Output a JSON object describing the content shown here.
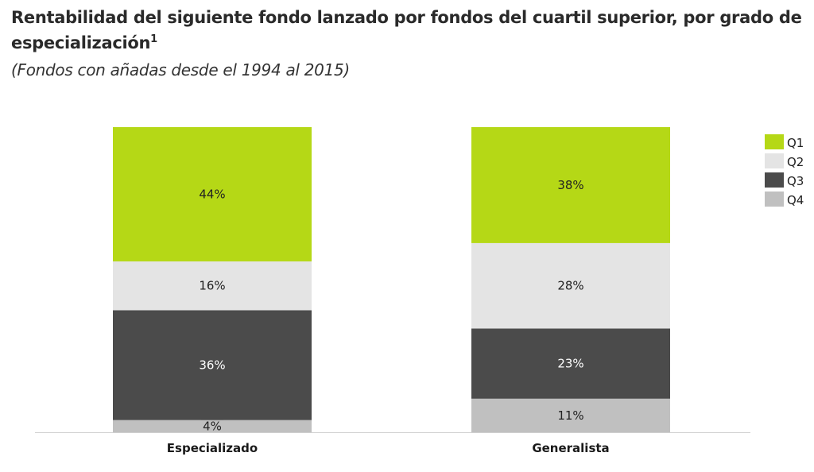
{
  "chart_data": {
    "type": "bar",
    "stacked": true,
    "title": "Rentabilidad del siguiente fondo lanzado por fondos del cuartil superior, por grado de especialización",
    "title_footnote": "1",
    "subtitle": "(Fondos con añadas desde el 1994 al 2015)",
    "categories": [
      "Especializado",
      "Generalista"
    ],
    "series": [
      {
        "name": "Q1",
        "color": "#b5d816",
        "label_color": "#222222",
        "values": [
          44,
          38
        ],
        "labels": [
          "44%",
          "38%"
        ]
      },
      {
        "name": "Q2",
        "color": "#e4e4e4",
        "label_color": "#222222",
        "values": [
          16,
          28
        ],
        "labels": [
          "16%",
          "28%"
        ]
      },
      {
        "name": "Q3",
        "color": "#4b4b4b",
        "label_color": "#ffffff",
        "values": [
          36,
          23
        ],
        "labels": [
          "36%",
          "23%"
        ]
      },
      {
        "name": "Q4",
        "color": "#c0c0c0",
        "label_color": "#222222",
        "values": [
          4,
          11
        ],
        "labels": [
          "4%",
          "11%"
        ]
      }
    ],
    "ylim": [
      0,
      100
    ],
    "xlabel": "",
    "ylabel": "",
    "grid": false,
    "legend": "top-right"
  }
}
